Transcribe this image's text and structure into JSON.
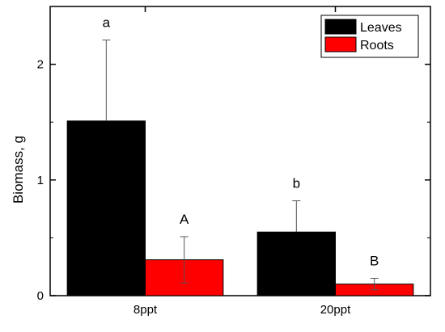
{
  "chart_data": {
    "type": "bar",
    "categories": [
      "8ppt",
      "20ppt"
    ],
    "series": [
      {
        "name": "Leaves",
        "values": [
          1.51,
          0.55
        ],
        "errors": [
          0.7,
          0.27
        ],
        "letters": [
          "a",
          "b"
        ],
        "color": "#000000"
      },
      {
        "name": "Roots",
        "values": [
          0.31,
          0.1
        ],
        "errors": [
          0.2,
          0.05
        ],
        "letters": [
          "A",
          "B"
        ],
        "color": "#ff0000"
      }
    ],
    "ylabel": "Biomass, g",
    "xlabel": "",
    "ylim": [
      0,
      2.5
    ],
    "yticks": [
      0,
      1,
      2
    ],
    "legend_position": "top-right",
    "grid": false
  }
}
